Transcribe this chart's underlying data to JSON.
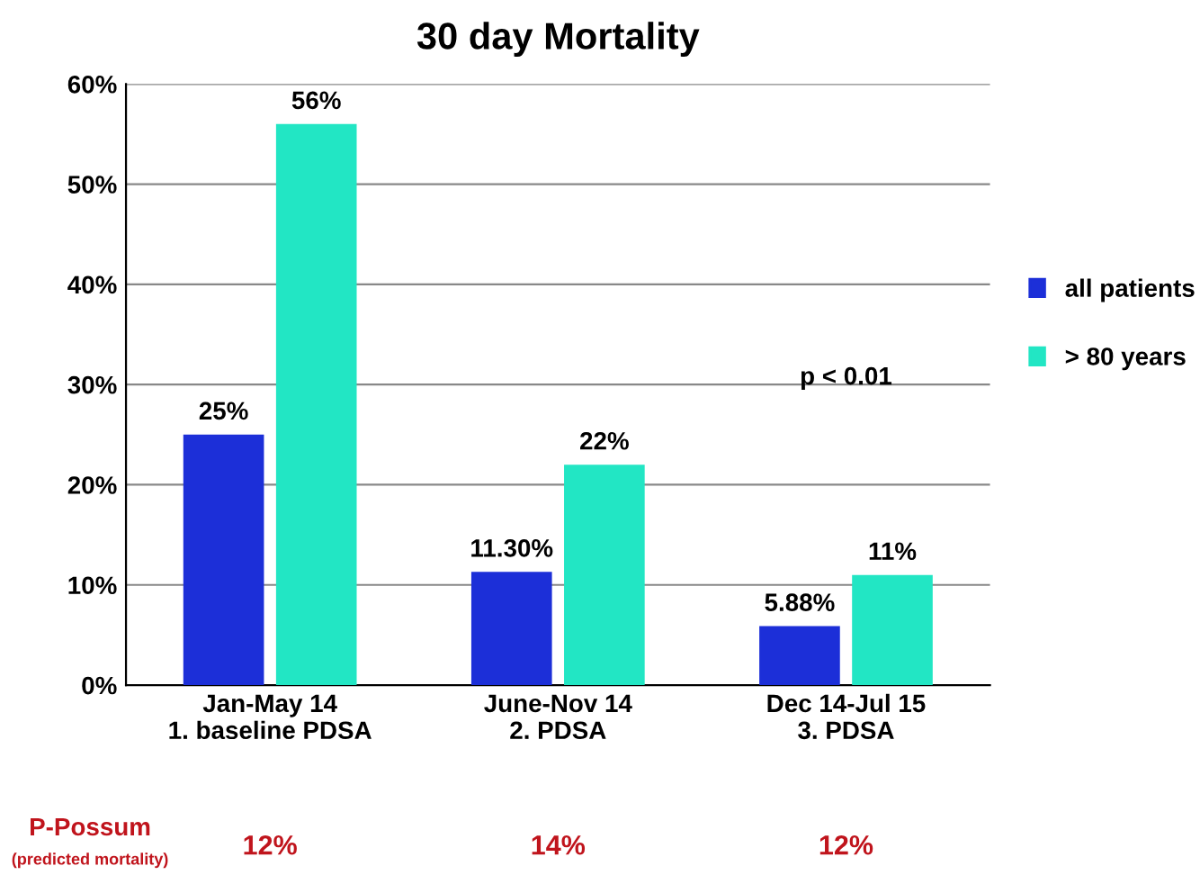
{
  "chart_data": {
    "type": "bar",
    "title": "30 day Mortality",
    "categories": [
      "Jan-May 14\n1. baseline PDSA",
      "June-Nov 14\n2. PDSA",
      "Dec 14-Jul 15\n3. PDSA"
    ],
    "series": [
      {
        "name": "all patients",
        "color": "#1c2fd8",
        "values": [
          25,
          11.3,
          5.88
        ],
        "value_labels": [
          "25%",
          "11.30%",
          "5.88%"
        ]
      },
      {
        "name": "> 80 years",
        "color": "#22e6c4",
        "values": [
          56,
          22,
          11
        ],
        "value_labels": [
          "56%",
          "22%",
          "11%"
        ]
      }
    ],
    "ylim": [
      0,
      60
    ],
    "yticks": [
      {
        "value": 0,
        "label": "0%"
      },
      {
        "value": 10,
        "label": "10%"
      },
      {
        "value": 20,
        "label": "20%"
      },
      {
        "value": 30,
        "label": "30%"
      },
      {
        "value": 40,
        "label": "40%"
      },
      {
        "value": 50,
        "label": "50%"
      },
      {
        "value": 60,
        "label": "60%"
      }
    ],
    "grid": "y",
    "legend": "right",
    "annotations": [
      "p < 0.01",
      "P-Possum",
      "(predicted mortality)",
      "12%",
      "14%",
      "12%"
    ]
  }
}
